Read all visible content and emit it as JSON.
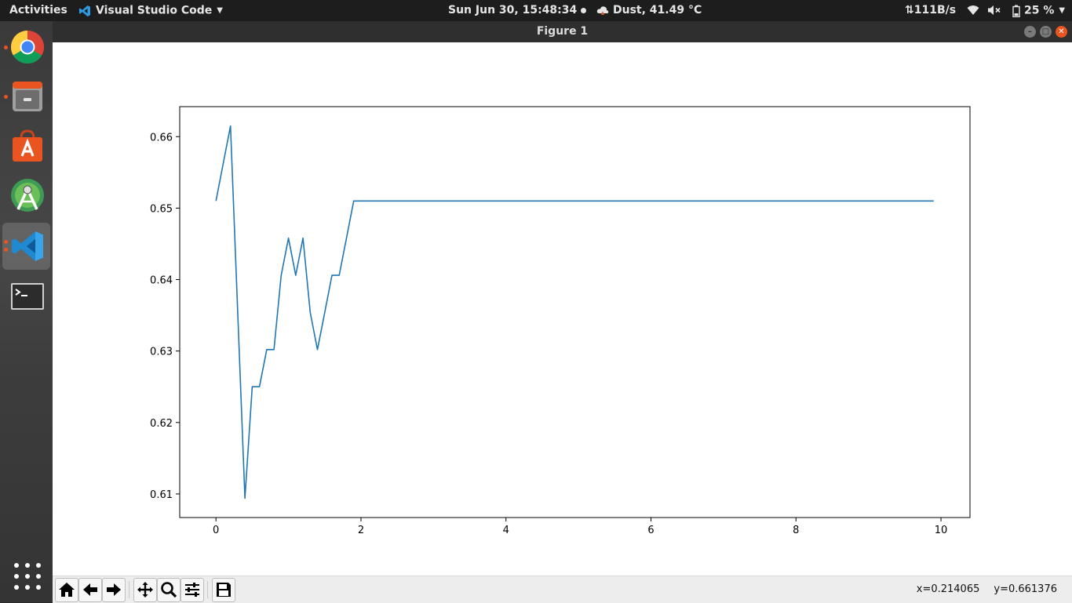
{
  "topbar": {
    "activities": "Activities",
    "app_name": "Visual Studio Code",
    "clock": "Sun Jun 30, 15:48:34",
    "weather": "Dust, 41.49 °C",
    "net_speed": "⇅111B/s",
    "battery": "25 %"
  },
  "dock": {
    "items": [
      {
        "name": "chrome",
        "running": true
      },
      {
        "name": "files",
        "running": true
      },
      {
        "name": "software-center",
        "running": false
      },
      {
        "name": "android-studio",
        "running": false
      },
      {
        "name": "vscode",
        "running": true,
        "active": true
      },
      {
        "name": "terminal",
        "running": false
      }
    ],
    "show_apps_icon": "grid-dots-icon"
  },
  "window": {
    "title": "Figure 1"
  },
  "toolbar": {
    "buttons": [
      "home-icon",
      "back-arrow-icon",
      "forward-arrow-icon",
      "pan-icon",
      "zoom-icon",
      "configure-subplots-icon",
      "save-icon"
    ],
    "coord_x": "x=0.214065",
    "coord_y": "y=0.661376"
  },
  "chart_data": {
    "type": "line",
    "title": "",
    "xlabel": "",
    "ylabel": "",
    "xlim": [
      -0.5,
      10.4
    ],
    "ylim": [
      0.6067,
      0.6642
    ],
    "xticks": [
      0,
      2,
      4,
      6,
      8,
      10
    ],
    "yticks": [
      0.61,
      0.62,
      0.63,
      0.64,
      0.65,
      0.66
    ],
    "xtick_labels": [
      "0",
      "2",
      "4",
      "6",
      "8",
      "10"
    ],
    "ytick_labels": [
      "0.61",
      "0.62",
      "0.63",
      "0.64",
      "0.65",
      "0.66"
    ],
    "line_color": "#1f77b4",
    "series": [
      {
        "x": [
          0.0,
          0.2,
          0.4,
          0.5,
          0.6,
          0.7,
          0.8,
          0.9,
          1.0,
          1.1,
          1.2,
          1.3,
          1.4,
          1.5,
          1.6,
          1.7,
          1.8,
          1.9,
          2.0,
          9.9
        ],
        "y": [
          0.651,
          0.6615,
          0.6094,
          0.625,
          0.625,
          0.6302,
          0.6302,
          0.6406,
          0.6458,
          0.6406,
          0.6458,
          0.6354,
          0.6302,
          0.6354,
          0.6406,
          0.6406,
          0.6458,
          0.651,
          0.651,
          0.651
        ]
      }
    ]
  }
}
